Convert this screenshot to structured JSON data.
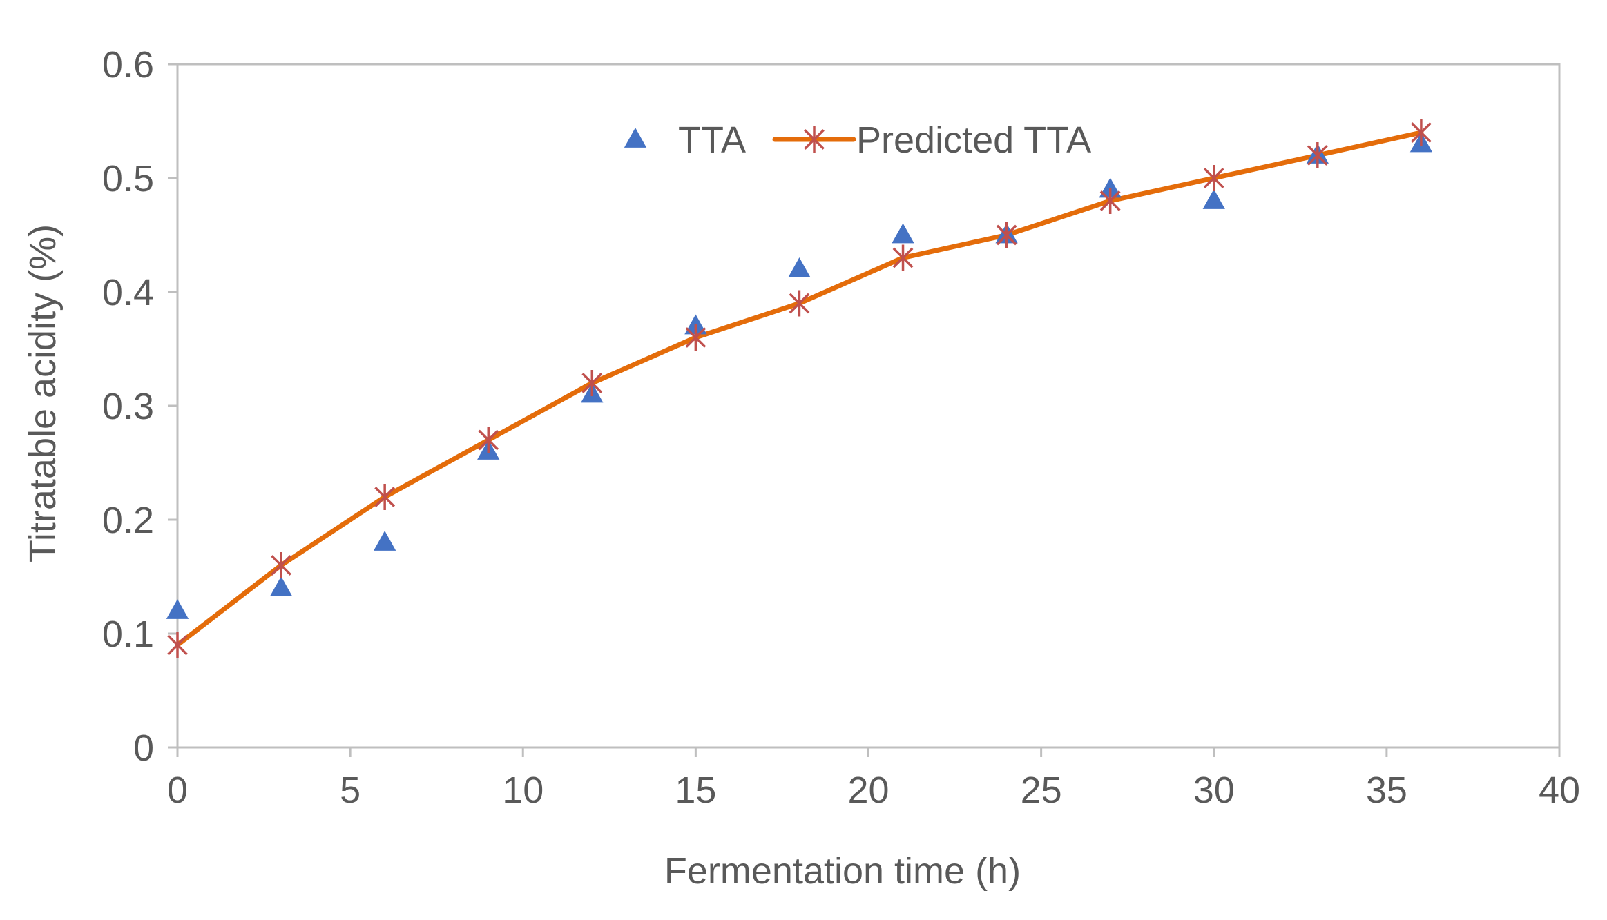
{
  "chart_data": {
    "type": "line",
    "title": "",
    "xlabel": "Fermentation time (h)",
    "ylabel": "Titratable acidity (%)",
    "xlim": [
      0,
      40
    ],
    "ylim": [
      0,
      0.6
    ],
    "x_ticks": [
      0,
      5,
      10,
      15,
      20,
      25,
      30,
      35,
      40
    ],
    "y_ticks": [
      0,
      0.1,
      0.2,
      0.3,
      0.4,
      0.5,
      0.6
    ],
    "x_tick_labels": [
      "0",
      "5",
      "10",
      "15",
      "20",
      "25",
      "30",
      "35",
      "40"
    ],
    "y_tick_labels": [
      "0",
      "0.1",
      "0.2",
      "0.3",
      "0.4",
      "0.5",
      "0.6"
    ],
    "grid": false,
    "legend_position": "top-center",
    "series": [
      {
        "name": "TTA",
        "style": "scatter",
        "marker": "triangle",
        "color": "#4472C4",
        "x": [
          0,
          3,
          6,
          9,
          12,
          15,
          18,
          21,
          24,
          27,
          30,
          33,
          36
        ],
        "y": [
          0.12,
          0.14,
          0.18,
          0.26,
          0.31,
          0.37,
          0.42,
          0.45,
          0.45,
          0.49,
          0.48,
          0.52,
          0.53
        ]
      },
      {
        "name": "Predicted TTA",
        "style": "line",
        "marker": "asterisk",
        "color": "#E46C0A",
        "marker_color": "#C0504D",
        "x": [
          0,
          3,
          6,
          9,
          12,
          15,
          18,
          21,
          24,
          27,
          30,
          33,
          36
        ],
        "y": [
          0.09,
          0.16,
          0.22,
          0.27,
          0.32,
          0.36,
          0.39,
          0.43,
          0.45,
          0.48,
          0.5,
          0.52,
          0.54
        ]
      }
    ]
  }
}
